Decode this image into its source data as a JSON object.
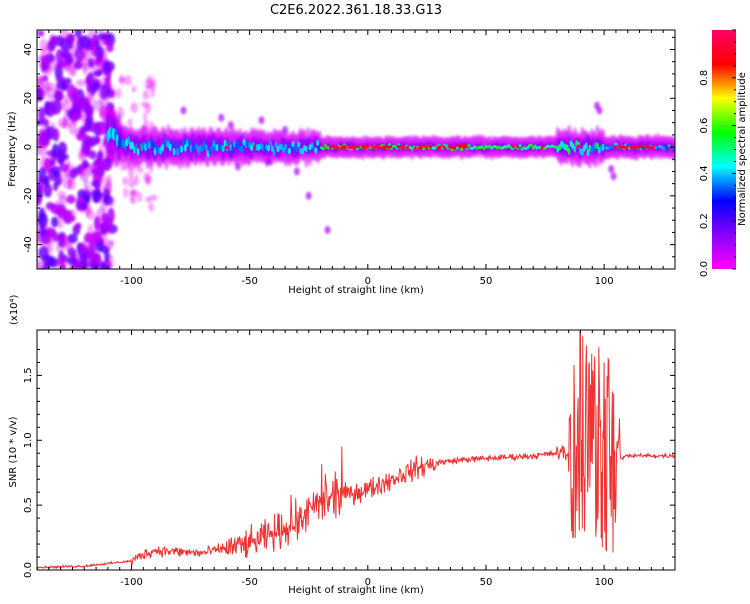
{
  "title": "C2E6.2022.361.18.33.G13",
  "chart_data": [
    {
      "type": "heatmap",
      "xlabel": "Height of straight line (km)",
      "ylabel": "Frequency (Hz)",
      "xlim": [
        -140,
        130
      ],
      "ylim": [
        -50,
        48
      ],
      "x_ticks": [
        -100,
        -50,
        0,
        50,
        100
      ],
      "y_ticks": [
        -40,
        -20,
        0,
        20,
        40
      ],
      "colorbar": {
        "label": "Normalized spectral amplitude",
        "range": [
          0.0,
          1.0
        ],
        "ticks": [
          0.0,
          0.2,
          0.4,
          0.6,
          0.8
        ],
        "colors": [
          "#ff00ff",
          "#8800ff",
          "#0000ff",
          "#00ffff",
          "#00ff00",
          "#ffff00",
          "#ff0000",
          "#ff0066"
        ]
      },
      "grid": false
    },
    {
      "type": "line",
      "xlabel": "Height of straight line (km)",
      "ylabel": "SNR (10 * v/v)",
      "y_multiplier": "(x10⁴)",
      "xlim": [
        -140,
        130
      ],
      "ylim": [
        0,
        1.85
      ],
      "x_ticks": [
        -100,
        -50,
        0,
        50,
        100
      ],
      "y_ticks": [
        0.0,
        0.5,
        1.0,
        1.5
      ],
      "series_color": "#ee3333",
      "grid": false,
      "series_envelope": [
        [
          -140,
          0.02
        ],
        [
          -120,
          0.03
        ],
        [
          -110,
          0.05
        ],
        [
          -100,
          0.07
        ],
        [
          -95,
          0.12
        ],
        [
          -90,
          0.15
        ],
        [
          -80,
          0.14
        ],
        [
          -70,
          0.13
        ],
        [
          -60,
          0.17
        ],
        [
          -50,
          0.2
        ],
        [
          -40,
          0.28
        ],
        [
          -30,
          0.38
        ],
        [
          -20,
          0.5
        ],
        [
          -10,
          0.58
        ],
        [
          0,
          0.62
        ],
        [
          10,
          0.7
        ],
        [
          20,
          0.78
        ],
        [
          30,
          0.83
        ],
        [
          40,
          0.85
        ],
        [
          50,
          0.86
        ],
        [
          60,
          0.87
        ],
        [
          70,
          0.88
        ],
        [
          80,
          0.9
        ],
        [
          85,
          0.9
        ],
        [
          90,
          1.0
        ],
        [
          95,
          0.9
        ],
        [
          100,
          0.85
        ],
        [
          105,
          0.85
        ],
        [
          110,
          0.88
        ],
        [
          120,
          0.88
        ],
        [
          130,
          0.88
        ]
      ]
    }
  ]
}
